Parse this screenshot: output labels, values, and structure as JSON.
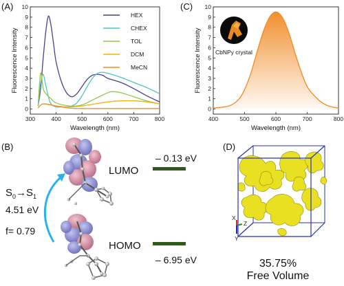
{
  "panels": {
    "a": "(A)",
    "b": "(B)",
    "c": "(C)",
    "d": "(D)"
  },
  "chart_data": [
    {
      "type": "line",
      "panel": "(A)",
      "xlabel": "Wavelength (nm)",
      "ylabel": "Fluorescence Intensity",
      "xlim": [
        300,
        800
      ],
      "ylim": [
        -0.5,
        10
      ],
      "xticks": [
        300,
        400,
        500,
        600,
        700,
        800
      ],
      "yticks": [
        0,
        1,
        2,
        3,
        4,
        5,
        6,
        7,
        8,
        9,
        10
      ],
      "legend_position": "top-right",
      "series": [
        {
          "name": "HEX",
          "color": "#4b3f8a",
          "x": [
            330,
            340,
            350,
            360,
            370,
            380,
            390,
            400,
            420,
            440,
            460,
            480,
            500,
            520,
            540,
            560,
            580,
            600,
            650,
            700,
            750,
            800
          ],
          "y": [
            0.3,
            2.0,
            5.0,
            7.6,
            9.1,
            8.2,
            6.4,
            4.6,
            2.7,
            1.6,
            1.2,
            1.5,
            2.2,
            2.9,
            3.3,
            3.4,
            3.3,
            3.0,
            2.6,
            2.0,
            1.3,
            0.7
          ]
        },
        {
          "name": "CHEX",
          "color": "#4fc3c8",
          "x": [
            330,
            340,
            350,
            360,
            370,
            380,
            400,
            420,
            440,
            460,
            480,
            500,
            520,
            540,
            560,
            580,
            600,
            650,
            700,
            750,
            800
          ],
          "y": [
            0.3,
            2.5,
            3.4,
            2.3,
            1.2,
            0.5,
            0.2,
            0.2,
            0.2,
            0.3,
            0.6,
            1.3,
            2.2,
            3.0,
            3.5,
            3.6,
            3.5,
            3.1,
            2.6,
            2.1,
            1.5
          ]
        },
        {
          "name": "TOL",
          "color": "#8fc84a",
          "x": [
            330,
            340,
            350,
            360,
            380,
            400,
            450,
            500,
            550,
            600,
            620,
            650,
            700,
            750,
            800
          ],
          "y": [
            0.3,
            3.5,
            2.0,
            1.5,
            1.0,
            0.6,
            0.3,
            0.4,
            1.0,
            1.6,
            1.7,
            1.6,
            1.2,
            0.8,
            0.5
          ]
        },
        {
          "name": "DCM",
          "color": "#f2b10f",
          "x": [
            330,
            350,
            400,
            450,
            500,
            550,
            600,
            650,
            700,
            750,
            800
          ],
          "y": [
            0.1,
            0.5,
            0.3,
            0.2,
            0.3,
            0.5,
            0.7,
            0.8,
            0.8,
            0.7,
            0.5
          ]
        },
        {
          "name": "MeCN",
          "color": "#f08a24",
          "x": [
            330,
            350,
            400,
            450,
            500,
            550,
            600,
            650,
            700,
            750,
            800
          ],
          "y": [
            0.1,
            0.5,
            0.3,
            0.1,
            0.05,
            0.05,
            0.05,
            0.05,
            0.05,
            0.05,
            0.05
          ]
        }
      ]
    },
    {
      "type": "area",
      "panel": "(C)",
      "xlabel": "Wavelength (nm)",
      "ylabel": "Fluorescence Intensity",
      "xlim": [
        400,
        800
      ],
      "ylim": [
        -0.5,
        10
      ],
      "xticks": [
        400,
        500,
        600,
        700,
        800
      ],
      "yticks": [
        0,
        1,
        2,
        3,
        4,
        5,
        6,
        7,
        8,
        9,
        10
      ],
      "annotation": "CbNPy crystal",
      "series": [
        {
          "color": "#f08a24",
          "x": [
            400,
            450,
            480,
            500,
            520,
            540,
            560,
            580,
            600,
            620,
            640,
            660,
            680,
            700,
            720,
            740,
            760,
            780,
            800
          ],
          "y": [
            0.1,
            0.3,
            0.9,
            1.9,
            3.5,
            5.6,
            7.6,
            9.0,
            9.5,
            9.0,
            7.6,
            5.6,
            3.7,
            2.2,
            1.4,
            0.8,
            0.4,
            0.2,
            0.1
          ]
        }
      ]
    }
  ],
  "panel_b": {
    "transition": "S",
    "sub0": "0",
    "arrow": "→",
    "sub1": "1",
    "energy": "4.51 eV",
    "oscillator": "f= 0.79",
    "lumo_label": "LUMO",
    "lumo_value": "– 0.13 eV",
    "homo_label": "HOMO",
    "homo_value": "– 6.95 eV",
    "level_color": "#2f5a1c"
  },
  "panel_d": {
    "axis_x": "X",
    "axis_y": "Y",
    "axis_z": "Z",
    "percent": "35.75%",
    "caption": "Free Volume",
    "text_color": "#23336e",
    "box_color": "#2433b0",
    "volume_color": "#e8e020"
  }
}
